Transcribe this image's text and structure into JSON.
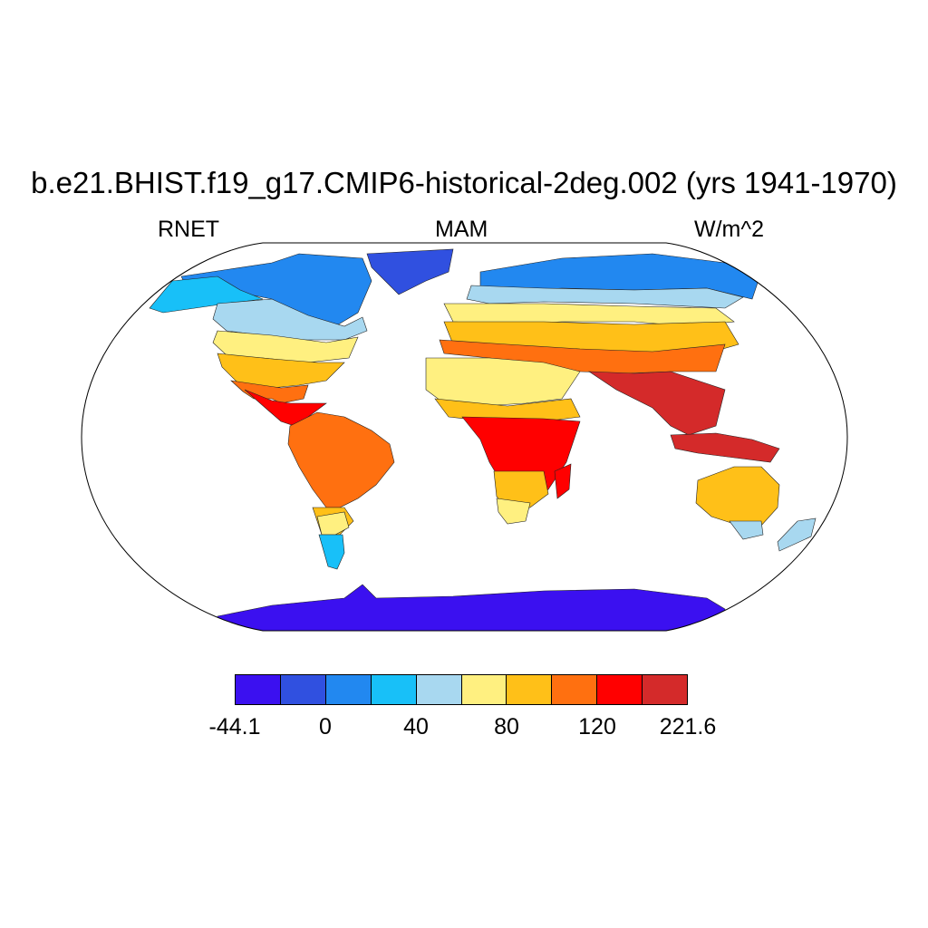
{
  "title": "b.e21.BHIST.f19_g17.CMIP6-historical-2deg.002 (yrs 1941-1970)",
  "subtitles": {
    "left": "RNET",
    "center": "MAM",
    "right": "W/m^2"
  },
  "projection": "robinson",
  "colorbar": {
    "colors": [
      "#3b10f0",
      "#3050e0",
      "#2288f0",
      "#18c0f8",
      "#a8d8f0",
      "#fff080",
      "#ffc018",
      "#ff7010",
      "#ff0000",
      "#d42a2a"
    ],
    "tick_labels": [
      "-44.1",
      "0",
      "40",
      "80",
      "120",
      "221.6"
    ]
  },
  "regions": [
    {
      "name": "antarctica",
      "level": 0
    },
    {
      "name": "greenland",
      "level": 0
    },
    {
      "name": "arctic-canada",
      "level": 1
    },
    {
      "name": "north-siberia",
      "level": 2
    },
    {
      "name": "alaska",
      "level": 3
    },
    {
      "name": "north-europe",
      "level": 4
    },
    {
      "name": "central-asia",
      "level": 5
    },
    {
      "name": "north-africa",
      "level": 6
    },
    {
      "name": "south-asia",
      "level": 8
    },
    {
      "name": "amazon",
      "level": 8
    },
    {
      "name": "central-africa",
      "level": 8
    },
    {
      "name": "australia",
      "level": 6
    },
    {
      "name": "patagonia",
      "level": 4
    }
  ]
}
